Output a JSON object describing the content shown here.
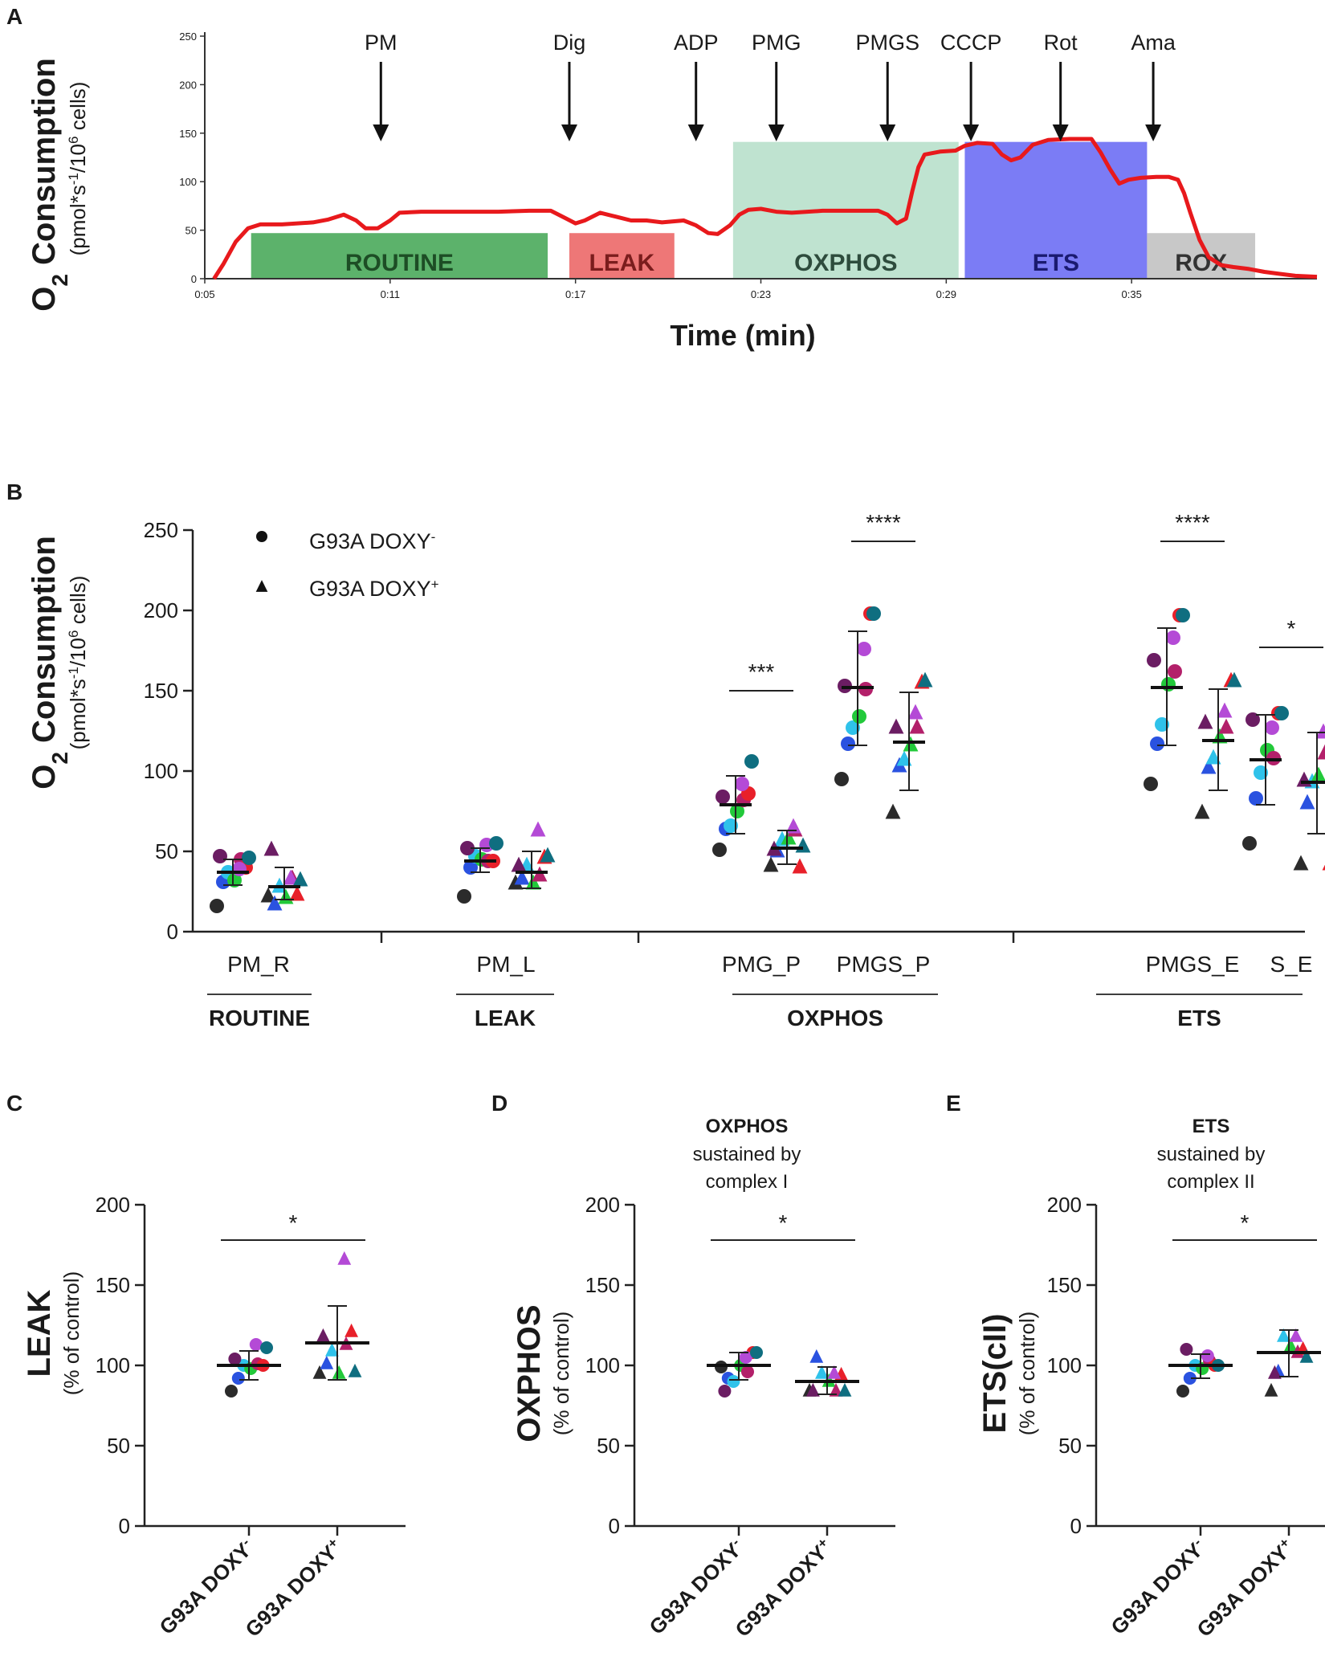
{
  "chart_data": [
    {
      "panel": "A",
      "type": "line",
      "ylabel_main": "O2 Consumption",
      "ylabel_sub": "(pmol*s-1/106 cells)",
      "xlabel": "Time (min)",
      "ylim": [
        0,
        250
      ],
      "yticks": [
        "0",
        "50",
        "100",
        "150",
        "200",
        "250"
      ],
      "xlim": [
        5,
        41
      ],
      "xticks": [
        {
          "t": 5,
          "label": "0:05"
        },
        {
          "t": 11,
          "label": "0:11"
        },
        {
          "t": 17,
          "label": "0:17"
        },
        {
          "t": 23,
          "label": "0:23"
        },
        {
          "t": 29,
          "label": "0:29"
        },
        {
          "t": 35,
          "label": "0:35"
        }
      ],
      "series_color": "#e8191c",
      "trace": [
        [
          5.3,
          0
        ],
        [
          5.6,
          15
        ],
        [
          6.0,
          38
        ],
        [
          6.4,
          52
        ],
        [
          6.8,
          56
        ],
        [
          7.5,
          56
        ],
        [
          8.5,
          58
        ],
        [
          9.0,
          61
        ],
        [
          9.5,
          66
        ],
        [
          9.9,
          60
        ],
        [
          10.2,
          52
        ],
        [
          10.6,
          52
        ],
        [
          11.0,
          60
        ],
        [
          11.3,
          68
        ],
        [
          12.0,
          69
        ],
        [
          13.0,
          69
        ],
        [
          14.5,
          69
        ],
        [
          15.5,
          70
        ],
        [
          16.2,
          70
        ],
        [
          16.7,
          62
        ],
        [
          17.0,
          57
        ],
        [
          17.3,
          60
        ],
        [
          17.8,
          68
        ],
        [
          18.3,
          64
        ],
        [
          18.8,
          60
        ],
        [
          19.3,
          60
        ],
        [
          19.8,
          58
        ],
        [
          20.5,
          60
        ],
        [
          20.9,
          55
        ],
        [
          21.3,
          47
        ],
        [
          21.6,
          46
        ],
        [
          22.0,
          55
        ],
        [
          22.3,
          66
        ],
        [
          22.6,
          71
        ],
        [
          23.0,
          72
        ],
        [
          23.5,
          69
        ],
        [
          24.0,
          68
        ],
        [
          25.0,
          70
        ],
        [
          26.0,
          70
        ],
        [
          26.8,
          70
        ],
        [
          27.1,
          66
        ],
        [
          27.4,
          57
        ],
        [
          27.7,
          62
        ],
        [
          27.9,
          90
        ],
        [
          28.1,
          115
        ],
        [
          28.3,
          128
        ],
        [
          28.8,
          131
        ],
        [
          29.3,
          132
        ],
        [
          29.6,
          137
        ],
        [
          30.0,
          140
        ],
        [
          30.5,
          139
        ],
        [
          30.8,
          128
        ],
        [
          31.1,
          122
        ],
        [
          31.4,
          125
        ],
        [
          31.8,
          138
        ],
        [
          32.3,
          143
        ],
        [
          33.0,
          144
        ],
        [
          33.7,
          144
        ],
        [
          34.0,
          130
        ],
        [
          34.3,
          113
        ],
        [
          34.6,
          98
        ],
        [
          34.9,
          102
        ],
        [
          35.3,
          104
        ],
        [
          35.8,
          105
        ],
        [
          36.2,
          105
        ],
        [
          36.5,
          102
        ],
        [
          36.7,
          88
        ],
        [
          36.9,
          68
        ],
        [
          37.2,
          40
        ],
        [
          37.5,
          22
        ],
        [
          37.9,
          14
        ],
        [
          38.3,
          12
        ],
        [
          38.8,
          10
        ],
        [
          39.3,
          7
        ],
        [
          39.8,
          5
        ],
        [
          40.3,
          3
        ],
        [
          41.0,
          2
        ]
      ],
      "boxes": [
        {
          "label": "ROUTINE",
          "t0": 6.5,
          "t1": 16.1,
          "top": 47,
          "fill": "#5cb26b",
          "text": "#1d4d25"
        },
        {
          "label": "LEAK",
          "t0": 16.8,
          "t1": 20.2,
          "top": 47,
          "fill": "#ee7777",
          "text": "#7a1d1d"
        },
        {
          "label": "OXPHOS",
          "t0": 22.1,
          "t1": 29.4,
          "top": 141,
          "fill": "#bfe3d0",
          "text": "#2e4c3d"
        },
        {
          "label": "ETS",
          "t0": 29.6,
          "t1": 35.5,
          "top": 141,
          "fill": "#7b7cf5",
          "text": "#1a1a70"
        },
        {
          "label": "ROX",
          "t0": 35.5,
          "t1": 39.0,
          "top": 47,
          "fill": "#c8c8c8",
          "text": "#333333"
        }
      ],
      "events": [
        {
          "label": "PM",
          "t": 10.7
        },
        {
          "label": "Dig",
          "t": 16.8
        },
        {
          "label": "ADP",
          "t": 20.9
        },
        {
          "label": "PMG",
          "t": 23.5
        },
        {
          "label": "PMGS",
          "t": 27.1
        },
        {
          "label": "CCCP",
          "t": 29.8
        },
        {
          "label": "Rot",
          "t": 32.7
        },
        {
          "label": "Ama",
          "t": 35.7
        }
      ]
    },
    {
      "panel": "B",
      "type": "scatter",
      "ylabel_main": "O2 Consumption",
      "ylabel_sub": "(pmol*s-1/106 cells)",
      "ylim": [
        0,
        250
      ],
      "yticks": [
        "0",
        "50",
        "100",
        "150",
        "200",
        "250"
      ],
      "legend": [
        {
          "marker": "circle",
          "label": "G93A DOXY-"
        },
        {
          "marker": "triangle",
          "label": "G93A DOXY+"
        }
      ],
      "point_colors": [
        "#2b2b2b",
        "#2a52e0",
        "#2fc2ea",
        "#22c93a",
        "#b3206a",
        "#e8202a",
        "#6b1d63",
        "#b44ad6",
        "#0f6e80"
      ],
      "categories": [
        "PM_R",
        "PM_L",
        "PMG_P",
        "PMGS_P",
        "PMGS_E",
        "S_E"
      ],
      "groups": [
        {
          "label": "ROUTINE",
          "categories": [
            "PM_R"
          ]
        },
        {
          "label": "LEAK",
          "categories": [
            "PM_L"
          ]
        },
        {
          "label": "OXPHOS",
          "categories": [
            "PMG_P",
            "PMGS_P"
          ]
        },
        {
          "label": "ETS",
          "categories": [
            "PMGS_E",
            "S_E"
          ]
        }
      ],
      "series": [
        {
          "name": "G93A DOXY-",
          "marker": "circle",
          "means": [
            37,
            44,
            79,
            152,
            152,
            107
          ],
          "sd_low": [
            29,
            37,
            61,
            116,
            116,
            79
          ],
          "sd_high": [
            45,
            52,
            97,
            187,
            189,
            135
          ],
          "values": [
            [
              16,
              31,
              37,
              32,
              45,
              40,
              47,
              39,
              46
            ],
            [
              22,
              40,
              47,
              45,
              44,
              44,
              52,
              54,
              55
            ],
            [
              51,
              64,
              66,
              75,
              82,
              86,
              84,
              92,
              106
            ],
            [
              95,
              117,
              127,
              134,
              151,
              198,
              153,
              176,
              198
            ],
            [
              92,
              117,
              129,
              154,
              162,
              197,
              169,
              183,
              197
            ],
            [
              55,
              83,
              99,
              113,
              108,
              136,
              132,
              127,
              136
            ]
          ]
        },
        {
          "name": "G93A DOXY+",
          "marker": "triangle",
          "means": [
            28,
            37,
            52,
            118,
            119,
            93
          ],
          "sd_low": [
            20,
            27,
            42,
            88,
            88,
            61
          ],
          "sd_high": [
            40,
            50,
            63,
            149,
            151,
            124
          ],
          "values": [
            [
              22,
              17,
              28,
              21,
              33,
              23,
              51,
              33,
              32
            ],
            [
              30,
              33,
              41,
              30,
              35,
              46,
              41,
              63,
              47
            ],
            [
              41,
              50,
              57,
              58,
              63,
              40,
              51,
              65,
              53
            ],
            [
              74,
              103,
              107,
              116,
              127,
              155,
              127,
              136,
              156
            ],
            [
              74,
              102,
              108,
              121,
              127,
              156,
              130,
              137,
              156
            ],
            [
              42,
              80,
              93,
              97,
              111,
              42,
              94,
              124,
              124
            ]
          ]
        }
      ],
      "significance": [
        {
          "category": "PMG_P",
          "label": "***",
          "y": 150
        },
        {
          "category": "PMGS_P",
          "label": "****",
          "y": 243
        },
        {
          "category": "PMGS_E",
          "label": "****",
          "y": 243
        },
        {
          "category": "S_E",
          "label": "*",
          "y": 177
        }
      ]
    },
    {
      "panel": "C",
      "type": "scatter",
      "ylabel_main": "LEAK",
      "ylabel_sub": "(% of control)",
      "ylim": [
        0,
        200
      ],
      "yticks": [
        "0",
        "50",
        "100",
        "150",
        "200"
      ],
      "categories": [
        "G93A DOXY-",
        "G93A DOXY+"
      ],
      "markers": [
        "circle",
        "triangle"
      ],
      "point_colors": [
        "#2b2b2b",
        "#2a52e0",
        "#2fc2ea",
        "#22c93a",
        "#b3206a",
        "#e8202a",
        "#6b1d63",
        "#b44ad6",
        "#0f6e80"
      ],
      "values": [
        [
          84,
          92,
          100,
          98,
          101,
          100,
          104,
          113,
          111
        ],
        [
          95,
          101,
          109,
          95,
          113,
          121,
          118,
          166,
          96
        ]
      ],
      "means": [
        100,
        114
      ],
      "sd_low": [
        91,
        91
      ],
      "sd_high": [
        109,
        137
      ],
      "significance": {
        "label": "*",
        "y": 178
      }
    },
    {
      "panel": "D",
      "type": "scatter",
      "title_bold": "OXPHOS",
      "title_lines": [
        "sustained by",
        "complex I"
      ],
      "ylabel_main": "OXPHOS",
      "ylabel_sub": "(% of control)",
      "ylim": [
        0,
        200
      ],
      "yticks": [
        "0",
        "50",
        "100",
        "150",
        "200"
      ],
      "categories": [
        "G93A DOXY-",
        "G93A DOXY+"
      ],
      "markers": [
        "circle",
        "triangle"
      ],
      "point_colors": [
        "#2b2b2b",
        "#2a52e0",
        "#2fc2ea",
        "#22c93a",
        "#b3206a",
        "#e8202a",
        "#6b1d63",
        "#b44ad6",
        "#0f6e80"
      ],
      "values": [
        [
          99,
          92,
          90,
          100,
          96,
          108,
          84,
          105,
          108
        ],
        [
          84,
          105,
          95,
          90,
          84,
          94,
          84,
          95,
          84
        ]
      ],
      "means": [
        100,
        90
      ],
      "sd_low": [
        91,
        82
      ],
      "sd_high": [
        108,
        99
      ],
      "significance": {
        "label": "*",
        "y": 178
      }
    },
    {
      "panel": "E",
      "type": "scatter",
      "title_bold": "ETS",
      "title_lines": [
        "sustained by",
        "complex II"
      ],
      "ylabel_main": "ETS(cII)",
      "ylabel_sub": "(% of control)",
      "ylim": [
        0,
        200
      ],
      "yticks": [
        "0",
        "50",
        "100",
        "150",
        "200"
      ],
      "categories": [
        "G93A DOXY-",
        "G93A DOXY+"
      ],
      "markers": [
        "circle",
        "triangle"
      ],
      "point_colors": [
        "#2b2b2b",
        "#2a52e0",
        "#2fc2ea",
        "#22c93a",
        "#b3206a",
        "#e8202a",
        "#6b1d63",
        "#b44ad6",
        "#0f6e80"
      ],
      "values": [
        [
          84,
          92,
          100,
          98,
          103,
          100,
          110,
          106,
          100
        ],
        [
          84,
          96,
          118,
          112,
          108,
          110,
          95,
          118,
          105
        ]
      ],
      "means": [
        100,
        108
      ],
      "sd_low": [
        92,
        93
      ],
      "sd_high": [
        107,
        122
      ],
      "significance": {
        "label": "*",
        "y": 178
      }
    }
  ]
}
